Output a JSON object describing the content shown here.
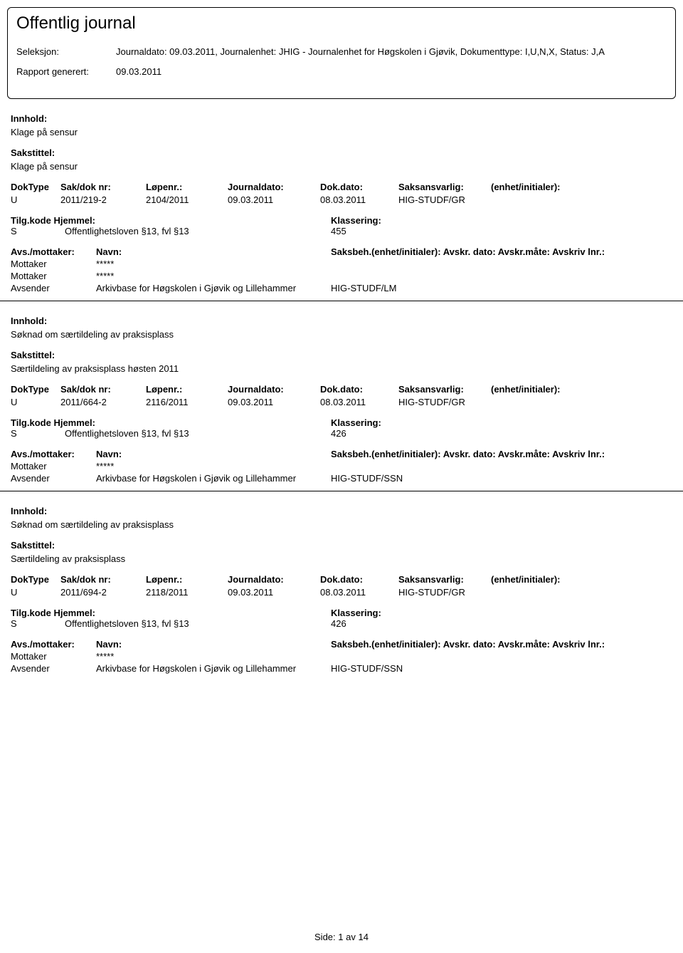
{
  "header": {
    "title": "Offentlig journal",
    "seleksjon_label": "Seleksjon:",
    "seleksjon_value": "Journaldato: 09.03.2011, Journalenhet: JHIG - Journalenhet for Høgskolen i Gjøvik, Dokumenttype: I,U,N,X, Status: J,A",
    "rapport_label": "Rapport generert:",
    "rapport_value": "09.03.2011"
  },
  "labels": {
    "innhold": "Innhold:",
    "sakstittel": "Sakstittel:",
    "doktype": "DokType",
    "sakdok": "Sak/dok nr:",
    "lopenr": "Løpenr.:",
    "journaldato": "Journaldato:",
    "dokdato": "Dok.dato:",
    "saksansvarlig": "Saksansvarlig:",
    "enhet": "(enhet/initialer):",
    "tilgkode": "Tilg.kode",
    "hjemmel": "Hjemmel:",
    "klassering": "Klassering:",
    "avsmottaker": "Avs./mottaker:",
    "navn": "Navn:",
    "saksbeh": "Saksbeh.(enhet/initialer): Avskr. dato: Avskr.måte: Avskriv lnr.:"
  },
  "entries": [
    {
      "innhold": "Klage på sensur",
      "sakstittel": "Klage på sensur",
      "doktype": "U",
      "sakdok": "2011/219-2",
      "lopenr": "2104/2011",
      "journaldato": "09.03.2011",
      "dokdato": "08.03.2011",
      "saksansvarlig": "HIG-STUDF/GR",
      "tilgkode": "S",
      "hjemmel": "Offentlighetsloven §13, fvl §13",
      "klassering": "455",
      "parties": [
        {
          "role": "Mottaker",
          "navn": "*****",
          "saksbeh": ""
        },
        {
          "role": "Mottaker",
          "navn": "*****",
          "saksbeh": ""
        },
        {
          "role": "Avsender",
          "navn": "Arkivbase for Høgskolen i Gjøvik og Lillehammer",
          "saksbeh": "HIG-STUDF/LM"
        }
      ]
    },
    {
      "innhold": "Søknad om særtildeling av praksisplass",
      "sakstittel": "Særtildeling av praksisplass høsten 2011",
      "doktype": "U",
      "sakdok": "2011/664-2",
      "lopenr": "2116/2011",
      "journaldato": "09.03.2011",
      "dokdato": "08.03.2011",
      "saksansvarlig": "HIG-STUDF/GR",
      "tilgkode": "S",
      "hjemmel": "Offentlighetsloven §13, fvl §13",
      "klassering": "426",
      "parties": [
        {
          "role": "Mottaker",
          "navn": "*****",
          "saksbeh": ""
        },
        {
          "role": "Avsender",
          "navn": "Arkivbase for Høgskolen i Gjøvik og Lillehammer",
          "saksbeh": "HIG-STUDF/SSN"
        }
      ]
    },
    {
      "innhold": "Søknad om særtildeling av praksisplass",
      "sakstittel": "Særtildeling av praksisplass",
      "doktype": "U",
      "sakdok": "2011/694-2",
      "lopenr": "2118/2011",
      "journaldato": "09.03.2011",
      "dokdato": "08.03.2011",
      "saksansvarlig": "HIG-STUDF/GR",
      "tilgkode": "S",
      "hjemmel": "Offentlighetsloven §13, fvl §13",
      "klassering": "426",
      "parties": [
        {
          "role": "Mottaker",
          "navn": "*****",
          "saksbeh": ""
        },
        {
          "role": "Avsender",
          "navn": "Arkivbase for Høgskolen i Gjøvik og Lillehammer",
          "saksbeh": "HIG-STUDF/SSN"
        }
      ]
    }
  ],
  "footer": {
    "side_label": "Side:",
    "page_current": "1",
    "av": "av",
    "page_total": "14"
  }
}
